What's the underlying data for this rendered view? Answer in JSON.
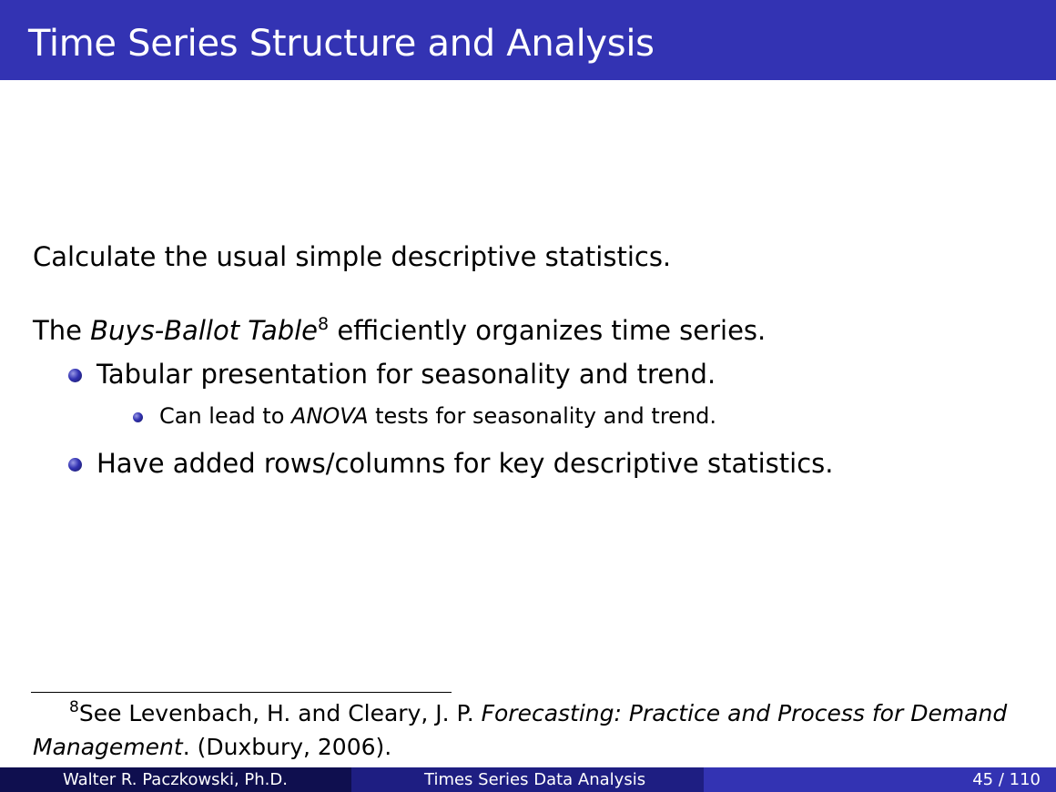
{
  "slide": {
    "title": "Time Series Structure and Analysis",
    "colors": {
      "title_bar": "#3333b3",
      "footer_left": "#0f0f4f",
      "footer_mid": "#1e1e82",
      "footer_right": "#3333b3"
    }
  },
  "body": {
    "line1": "Calculate the usual simple descriptive statistics.",
    "line2": {
      "prefix": "The ",
      "emph": "Buys-Ballot Table",
      "footnote_ref": "8",
      "suffix": " efficiently organizes time series."
    },
    "bullets": [
      {
        "icon": "bullet-icon",
        "text": "Tabular presentation for seasonality and trend.",
        "sub": [
          {
            "icon": "bullet-icon",
            "prefix": "Can lead to ",
            "emph": "ANOVA",
            "suffix": " tests for seasonality and trend."
          }
        ]
      },
      {
        "icon": "bullet-icon",
        "text": "Have added rows/columns for key descriptive statistics."
      }
    ]
  },
  "footnote": {
    "mark": "8",
    "part1": "See Levenbach, H. and Cleary, J. P.  ",
    "emph1": "Forecasting: Practice and Process for Demand",
    "emph2": "Management",
    "part2": ". (Duxbury, 2006)."
  },
  "footer": {
    "author": "Walter R. Paczkowski, Ph.D.",
    "deck_title": "Times Series Data Analysis",
    "page": "45 / 110"
  }
}
